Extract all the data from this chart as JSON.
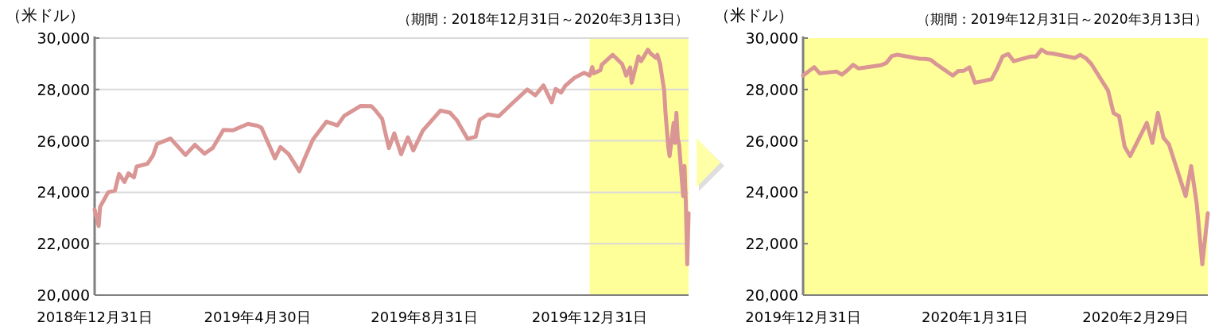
{
  "chart_data": [
    {
      "type": "line",
      "title": "（期間：2018年12月31日～2020年3月13日）",
      "ylabel": "（米ドル）",
      "grid": "y",
      "xlim": [
        "2018-12-31",
        "2020-03-13"
      ],
      "xticks": [
        {
          "value": "2018-12-31",
          "label": "2018年12月31日"
        },
        {
          "value": "2019-04-30",
          "label": "2019年4月30日"
        },
        {
          "value": "2019-08-31",
          "label": "2019年8月31日"
        },
        {
          "value": "2019-12-31",
          "label": "2019年12月31日"
        }
      ],
      "ylim": [
        20000,
        30000
      ],
      "yticks": [
        {
          "value": 20000,
          "label": "20,000"
        },
        {
          "value": 22000,
          "label": "22,000"
        },
        {
          "value": 24000,
          "label": "24,000"
        },
        {
          "value": 26000,
          "label": "26,000"
        },
        {
          "value": 28000,
          "label": "28,000"
        },
        {
          "value": 30000,
          "label": "30,000"
        }
      ],
      "bands": [
        {
          "axis": "x",
          "from": "2019-12-31",
          "to": "2020-03-13",
          "color": "#ffff99"
        }
      ],
      "x": [
        "2018-12-31",
        "2019-01-03",
        "2019-01-04",
        "2019-01-10",
        "2019-01-15",
        "2019-01-18",
        "2019-01-22",
        "2019-01-25",
        "2019-01-29",
        "2019-01-31",
        "2019-02-08",
        "2019-02-12",
        "2019-02-15",
        "2019-02-22",
        "2019-02-25",
        "2019-03-08",
        "2019-03-15",
        "2019-03-22",
        "2019-03-28",
        "2019-04-05",
        "2019-04-12",
        "2019-04-23",
        "2019-04-30",
        "2019-05-03",
        "2019-05-13",
        "2019-05-17",
        "2019-05-23",
        "2019-05-31",
        "2019-06-04",
        "2019-06-10",
        "2019-06-20",
        "2019-06-28",
        "2019-07-03",
        "2019-07-15",
        "2019-07-23",
        "2019-07-26",
        "2019-07-31",
        "2019-08-05",
        "2019-08-09",
        "2019-08-14",
        "2019-08-19",
        "2019-08-23",
        "2019-08-30",
        "2019-09-12",
        "2019-09-19",
        "2019-09-24",
        "2019-10-02",
        "2019-10-08",
        "2019-10-11",
        "2019-10-17",
        "2019-10-25",
        "2019-11-04",
        "2019-11-15",
        "2019-11-21",
        "2019-11-27",
        "2019-12-03",
        "2019-12-06",
        "2019-12-10",
        "2019-12-13",
        "2019-12-20",
        "2019-12-27",
        "2019-12-31",
        "2020-01-02",
        "2020-01-03",
        "2020-01-08",
        "2020-01-09",
        "2020-01-17",
        "2020-01-24",
        "2020-01-27",
        "2020-01-30",
        "2020-01-31",
        "2020-02-05",
        "2020-02-07",
        "2020-02-12",
        "2020-02-14",
        "2020-02-18",
        "2020-02-19",
        "2020-02-21",
        "2020-02-24",
        "2020-02-25",
        "2020-02-27",
        "2020-02-28",
        "2020-03-02",
        "2020-03-03",
        "2020-03-04",
        "2020-03-05",
        "2020-03-06",
        "2020-03-09",
        "2020-03-10",
        "2020-03-11",
        "2020-03-12",
        "2020-03-13"
      ],
      "series": [
        {
          "color": "#d99694",
          "values": [
            23330,
            22690,
            23430,
            24000,
            24070,
            24710,
            24400,
            24740,
            24580,
            25000,
            25110,
            25430,
            25880,
            26030,
            26090,
            25450,
            25850,
            25500,
            25720,
            26430,
            26410,
            26660,
            26590,
            26510,
            25320,
            25760,
            25490,
            24820,
            25330,
            26060,
            26750,
            26600,
            26970,
            27360,
            27350,
            27190,
            26860,
            25720,
            26290,
            25480,
            26140,
            25630,
            26400,
            27180,
            27100,
            26810,
            26080,
            26160,
            26820,
            27030,
            26960,
            27460,
            28000,
            27770,
            28160,
            27500,
            28020,
            27880,
            28140,
            28460,
            28650,
            28540,
            28870,
            28630,
            28750,
            28960,
            29350,
            28990,
            28540,
            28860,
            28260,
            29290,
            29100,
            29550,
            29400,
            29230,
            29350,
            28990,
            27960,
            27080,
            25770,
            25410,
            26700,
            25920,
            27090,
            26120,
            25860,
            23850,
            25020,
            23550,
            21200,
            23190
          ]
        }
      ]
    },
    {
      "type": "line",
      "title": "（期間：2019年12月31日～2020年3月13日）",
      "ylabel": "（米ドル）",
      "grid": false,
      "xlim": [
        "2019-12-31",
        "2020-03-13"
      ],
      "xticks": [
        {
          "value": "2019-12-31",
          "label": "2019年12月31日"
        },
        {
          "value": "2020-01-31",
          "label": "2020年1月31日"
        },
        {
          "value": "2020-02-29",
          "label": "2020年2月29日"
        }
      ],
      "ylim": [
        20000,
        30000
      ],
      "yticks": [
        {
          "value": 20000,
          "label": "20,000"
        },
        {
          "value": 22000,
          "label": "22,000"
        },
        {
          "value": 24000,
          "label": "24,000"
        },
        {
          "value": 26000,
          "label": "26,000"
        },
        {
          "value": 28000,
          "label": "28,000"
        },
        {
          "value": 30000,
          "label": "30,000"
        }
      ],
      "bands": [
        {
          "axis": "x",
          "from": "2019-12-31",
          "to": "2020-03-13",
          "color": "#ffff99"
        }
      ],
      "x": [
        "2019-12-31",
        "2020-01-02",
        "2020-01-03",
        "2020-01-06",
        "2020-01-07",
        "2020-01-08",
        "2020-01-09",
        "2020-01-10",
        "2020-01-13",
        "2020-01-14",
        "2020-01-15",
        "2020-01-16",
        "2020-01-17",
        "2020-01-21",
        "2020-01-22",
        "2020-01-23",
        "2020-01-24",
        "2020-01-27",
        "2020-01-28",
        "2020-01-29",
        "2020-01-30",
        "2020-01-31",
        "2020-02-03",
        "2020-02-04",
        "2020-02-05",
        "2020-02-06",
        "2020-02-07",
        "2020-02-10",
        "2020-02-11",
        "2020-02-12",
        "2020-02-13",
        "2020-02-14",
        "2020-02-18",
        "2020-02-19",
        "2020-02-20",
        "2020-02-21",
        "2020-02-24",
        "2020-02-25",
        "2020-02-26",
        "2020-02-27",
        "2020-02-28",
        "2020-03-02",
        "2020-03-03",
        "2020-03-04",
        "2020-03-05",
        "2020-03-06",
        "2020-03-09",
        "2020-03-10",
        "2020-03-11",
        "2020-03-12",
        "2020-03-13"
      ],
      "series": [
        {
          "color": "#d99694",
          "values": [
            28540,
            28870,
            28630,
            28700,
            28580,
            28750,
            28960,
            28820,
            28910,
            28940,
            29030,
            29300,
            29350,
            29200,
            29190,
            29160,
            28990,
            28540,
            28720,
            28730,
            28860,
            28260,
            28400,
            28810,
            29290,
            29380,
            29100,
            29280,
            29280,
            29550,
            29420,
            29400,
            29230,
            29350,
            29220,
            28990,
            27960,
            27080,
            26960,
            25770,
            25410,
            26700,
            25920,
            27090,
            26120,
            25860,
            23850,
            25020,
            23550,
            21200,
            23190
          ]
        }
      ]
    }
  ]
}
